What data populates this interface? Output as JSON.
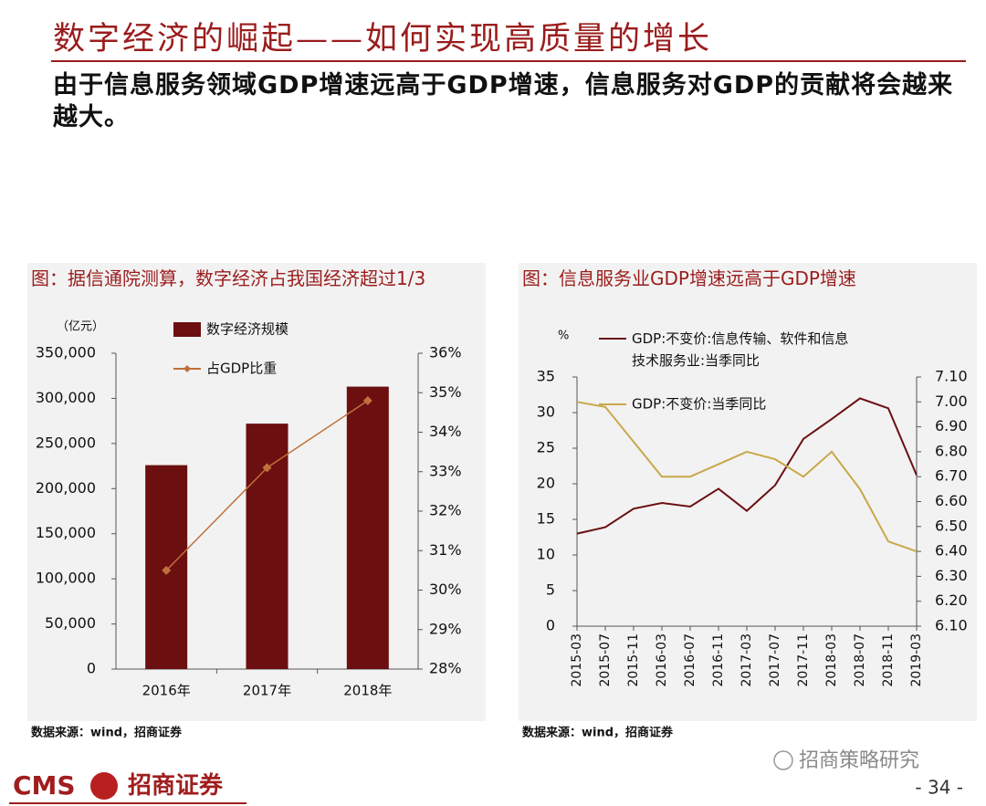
{
  "page": {
    "title": "数字经济的崛起——如何实现高质量的增长",
    "subtitle": "由于信息服务领域GDP增速远高于GDP增速，信息服务对GDP的贡献将会越来越大。",
    "footer": {
      "logo": "CMS",
      "brand": "招商证券",
      "watermark": "招商策略研究",
      "page_number": "- 34 -"
    }
  },
  "chart_data": [
    {
      "type": "bar",
      "title": "图：据信通院测算，数字经济占我国经济超过1/3",
      "y_unit": "（亿元）",
      "categories": [
        "2016年",
        "2017年",
        "2018年"
      ],
      "series": [
        {
          "name": "数字经济规模",
          "color": "#6b0f10",
          "values": [
            226000,
            272000,
            313000
          ]
        },
        {
          "name": "占GDP比重",
          "color": "#c0703a",
          "axis": "y2",
          "values": [
            30.5,
            33.1,
            34.8
          ]
        }
      ],
      "ylim": [
        0,
        350000
      ],
      "yticks": [
        0,
        {
          "value": 50000,
          "label": "50,000"
        },
        {
          "value": 100000,
          "label": "100,000"
        },
        {
          "value": 150000,
          "label": "150,000"
        },
        {
          "value": 200000,
          "label": "200,000"
        },
        {
          "value": 250000,
          "label": "250,000"
        },
        {
          "value": 300000,
          "label": "300,000"
        },
        {
          "value": 350000,
          "label": "350,000"
        }
      ],
      "y2lim": [
        28,
        36
      ],
      "y2ticks": [
        {
          "value": 28,
          "label": "28%"
        },
        {
          "value": 29,
          "label": "29%"
        },
        {
          "value": 30,
          "label": "30%"
        },
        {
          "value": 31,
          "label": "31%"
        },
        {
          "value": 32,
          "label": "32%"
        },
        {
          "value": 33,
          "label": "33%"
        },
        {
          "value": 34,
          "label": "34%"
        },
        {
          "value": 35,
          "label": "35%"
        },
        {
          "value": 36,
          "label": "36%"
        }
      ],
      "source": "数据来源：wind，招商证券"
    },
    {
      "type": "line",
      "title": "图：信息服务业GDP增速远高于GDP增速",
      "y_unit": "%",
      "categories": [
        "2015-03",
        "2015-07",
        "2015-11",
        "2016-03",
        "2016-07",
        "2016-11",
        "2017-03",
        "2017-07",
        "2017-11",
        "2018-03",
        "2018-07",
        "2018-11",
        "2019-03"
      ],
      "series": [
        {
          "name": "GDP:不变价:信息传输、软件和信息技术服务业:当季同比",
          "color": "#6b1012",
          "values": [
            13.0,
            13.9,
            16.5,
            17.3,
            16.8,
            19.3,
            16.2,
            19.8,
            26.3,
            29.1,
            32.0,
            30.6,
            21.2
          ]
        },
        {
          "name": "GDP:不变价:当季同比",
          "color": "#c8a84a",
          "axis": "y2",
          "values": [
            7.0,
            6.98,
            6.84,
            6.7,
            6.7,
            6.75,
            6.8,
            6.77,
            6.7,
            6.8,
            6.65,
            6.44,
            6.4
          ]
        }
      ],
      "ylim": [
        0,
        35
      ],
      "yticks": [
        0,
        5,
        10,
        15,
        20,
        25,
        30,
        35
      ],
      "y2lim": [
        6.1,
        7.1
      ],
      "y2ticks": [
        {
          "value": 6.1,
          "label": "6.10"
        },
        {
          "value": 6.2,
          "label": "6.20"
        },
        {
          "value": 6.3,
          "label": "6.30"
        },
        {
          "value": 6.4,
          "label": "6.40"
        },
        {
          "value": 6.5,
          "label": "6.50"
        },
        {
          "value": 6.6,
          "label": "6.60"
        },
        {
          "value": 6.7,
          "label": "6.70"
        },
        {
          "value": 6.8,
          "label": "6.80"
        },
        {
          "value": 6.9,
          "label": "6.90"
        },
        {
          "value": 7.0,
          "label": "7.00"
        },
        {
          "value": 7.1,
          "label": "7.10"
        }
      ],
      "source": "数据来源：wind，招商证券"
    }
  ]
}
